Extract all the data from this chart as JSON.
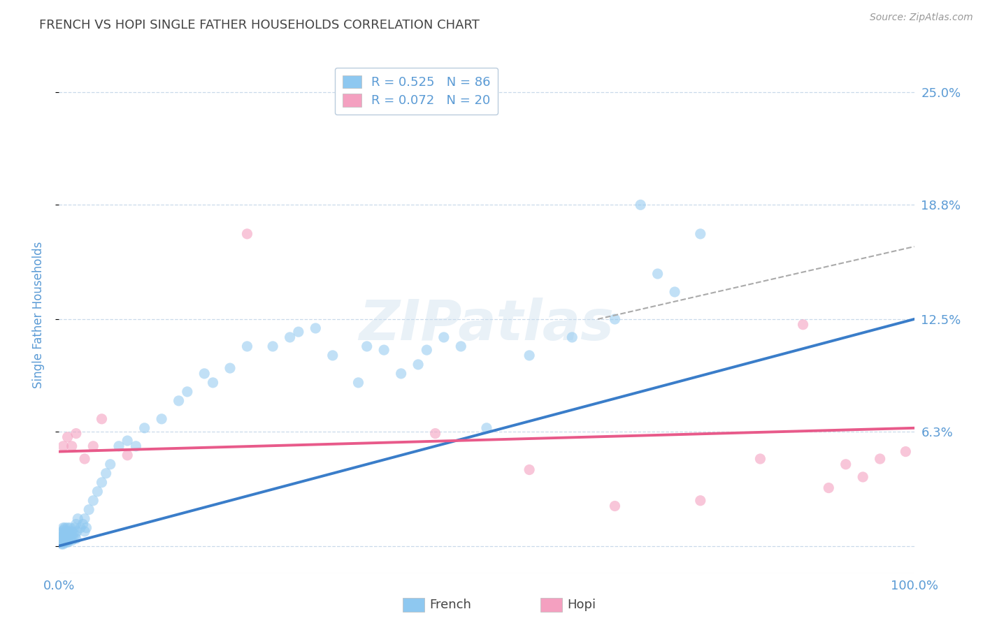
{
  "title": "FRENCH VS HOPI SINGLE FATHER HOUSEHOLDS CORRELATION CHART",
  "source": "Source: ZipAtlas.com",
  "ylabel": "Single Father Households",
  "xlim": [
    0.0,
    100.0
  ],
  "ylim": [
    -1.5,
    27.0
  ],
  "yticks": [
    0.0,
    6.3,
    12.5,
    18.8,
    25.0
  ],
  "ytick_labels": [
    "",
    "6.3%",
    "12.5%",
    "18.8%",
    "25.0%"
  ],
  "xticks": [
    0.0,
    100.0
  ],
  "xtick_labels": [
    "0.0%",
    "100.0%"
  ],
  "french_R": 0.525,
  "french_N": 86,
  "hopi_R": 0.072,
  "hopi_N": 20,
  "french_color": "#8EC8F0",
  "hopi_color": "#F4A0C0",
  "french_line_color": "#3A7DC9",
  "hopi_line_color": "#E85A8A",
  "dashed_line_color": "#AAAAAA",
  "grid_color": "#CADAEA",
  "title_color": "#444444",
  "tick_label_color": "#5B9BD5",
  "watermark_color": "#C8DCED",
  "background_color": "#FFFFFF",
  "french_line_x0": 0,
  "french_line_y0": 0.0,
  "french_line_x1": 100,
  "french_line_y1": 12.5,
  "hopi_line_x0": 0,
  "hopi_line_y0": 5.2,
  "hopi_line_x1": 100,
  "hopi_line_y1": 6.5,
  "dash_line_x0": 63,
  "dash_line_y0": 12.5,
  "dash_line_x1": 100,
  "dash_line_y1": 16.5,
  "french_x": [
    0.1,
    0.2,
    0.2,
    0.3,
    0.3,
    0.3,
    0.4,
    0.4,
    0.4,
    0.5,
    0.5,
    0.5,
    0.5,
    0.6,
    0.6,
    0.6,
    0.7,
    0.7,
    0.7,
    0.8,
    0.8,
    0.8,
    0.9,
    0.9,
    1.0,
    1.0,
    1.0,
    1.1,
    1.1,
    1.2,
    1.2,
    1.3,
    1.3,
    1.5,
    1.5,
    1.6,
    1.7,
    1.8,
    1.9,
    2.0,
    2.0,
    2.1,
    2.2,
    2.5,
    2.8,
    3.0,
    3.0,
    3.2,
    3.5,
    4.0,
    4.5,
    5.0,
    5.5,
    6.0,
    7.0,
    8.0,
    9.0,
    10.0,
    12.0,
    14.0,
    15.0,
    17.0,
    18.0,
    20.0,
    22.0,
    25.0,
    27.0,
    28.0,
    30.0,
    32.0,
    35.0,
    36.0,
    38.0,
    40.0,
    42.0,
    43.0,
    45.0,
    47.0,
    50.0,
    55.0,
    60.0,
    65.0,
    68.0,
    70.0,
    72.0,
    75.0
  ],
  "french_y": [
    0.3,
    0.2,
    0.5,
    0.1,
    0.4,
    0.7,
    0.2,
    0.5,
    0.8,
    0.1,
    0.3,
    0.6,
    1.0,
    0.2,
    0.5,
    0.9,
    0.3,
    0.6,
    1.0,
    0.2,
    0.5,
    0.8,
    0.3,
    0.7,
    0.2,
    0.5,
    1.0,
    0.4,
    0.8,
    0.3,
    0.7,
    0.5,
    1.0,
    0.3,
    0.8,
    0.5,
    0.7,
    1.0,
    0.6,
    0.4,
    1.2,
    0.8,
    1.5,
    1.0,
    1.2,
    1.5,
    0.8,
    1.0,
    2.0,
    2.5,
    3.0,
    3.5,
    4.0,
    4.5,
    5.5,
    5.8,
    5.5,
    6.5,
    7.0,
    8.0,
    8.5,
    9.5,
    9.0,
    9.8,
    11.0,
    11.0,
    11.5,
    11.8,
    12.0,
    10.5,
    9.0,
    11.0,
    10.8,
    9.5,
    10.0,
    10.8,
    11.5,
    11.0,
    6.5,
    10.5,
    11.5,
    12.5,
    18.8,
    15.0,
    14.0,
    17.2
  ],
  "hopi_x": [
    0.5,
    1.0,
    1.5,
    2.0,
    3.0,
    4.0,
    5.0,
    8.0,
    22.0,
    44.0,
    55.0,
    65.0,
    75.0,
    82.0,
    87.0,
    90.0,
    92.0,
    94.0,
    96.0,
    99.0
  ],
  "hopi_y": [
    5.5,
    6.0,
    5.5,
    6.2,
    4.8,
    5.5,
    7.0,
    5.0,
    17.2,
    6.2,
    4.2,
    2.2,
    2.5,
    4.8,
    12.2,
    3.2,
    4.5,
    3.8,
    4.8,
    5.2
  ]
}
